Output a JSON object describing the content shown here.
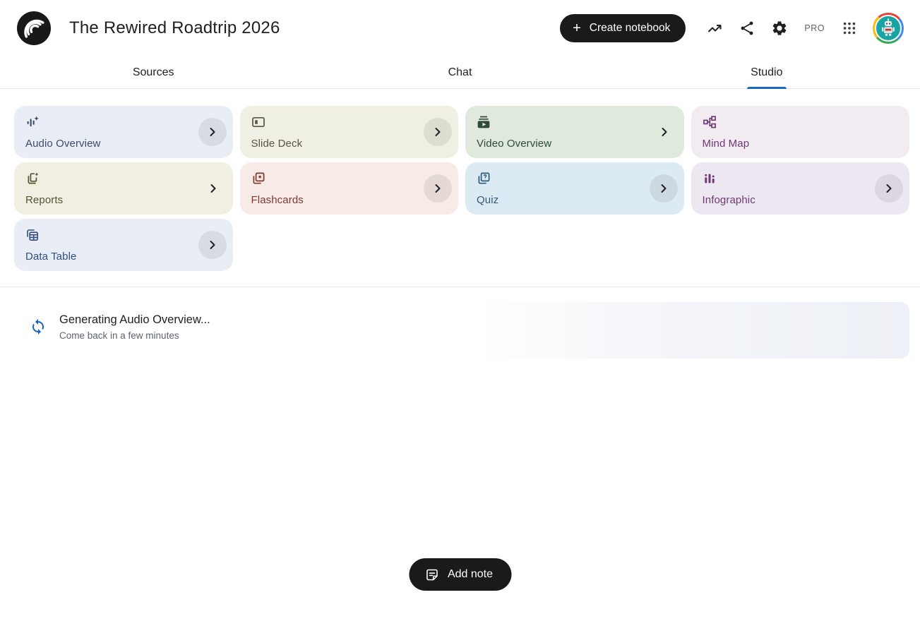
{
  "header": {
    "title": "The Rewired Roadtrip 2026",
    "create_notebook_label": "Create notebook",
    "pro_label": "PRO"
  },
  "tabs": [
    {
      "label": "Sources",
      "active": false
    },
    {
      "label": "Chat",
      "active": false
    },
    {
      "label": "Studio",
      "active": true
    }
  ],
  "studio_cards": [
    {
      "label": "Audio Overview",
      "icon": "audio-overview-icon",
      "bg": "#E9EDF6",
      "fg": "#3E4B66",
      "chevron": "circle"
    },
    {
      "label": "Slide Deck",
      "icon": "slide-deck-icon",
      "bg": "#F0EFE3",
      "fg": "#5A5440",
      "chevron": "circle"
    },
    {
      "label": "Video Overview",
      "icon": "video-overview-icon",
      "bg": "#DFEADC",
      "fg": "#2F4A38",
      "chevron": "plain"
    },
    {
      "label": "Mind Map",
      "icon": "mind-map-icon",
      "bg": "#F2EBF1",
      "fg": "#6B3B72",
      "chevron": "none"
    },
    {
      "label": "Reports",
      "icon": "reports-icon",
      "bg": "#F1EFE2",
      "fg": "#565134",
      "chevron": "plain"
    },
    {
      "label": "Flashcards",
      "icon": "flashcards-icon",
      "bg": "#F8EAE7",
      "fg": "#7D392E",
      "chevron": "circle"
    },
    {
      "label": "Quiz",
      "icon": "quiz-icon",
      "bg": "#DCEAF4",
      "fg": "#2F5B77",
      "chevron": "circle"
    },
    {
      "label": "Infographic",
      "icon": "infographic-icon",
      "bg": "#EDE7F2",
      "fg": "#6B3B72",
      "chevron": "circle"
    },
    {
      "label": "Data Table",
      "icon": "data-table-icon",
      "bg": "#E8EDF6",
      "fg": "#334E7D",
      "chevron": "circle"
    }
  ],
  "generating": {
    "title": "Generating Audio Overview...",
    "subtitle": "Come back in a few minutes"
  },
  "add_note_label": "Add note",
  "colors": {
    "accent_blue": "#1a65c9",
    "spinner_blue": "#1a63c6",
    "button_black": "#1a1a1a"
  }
}
